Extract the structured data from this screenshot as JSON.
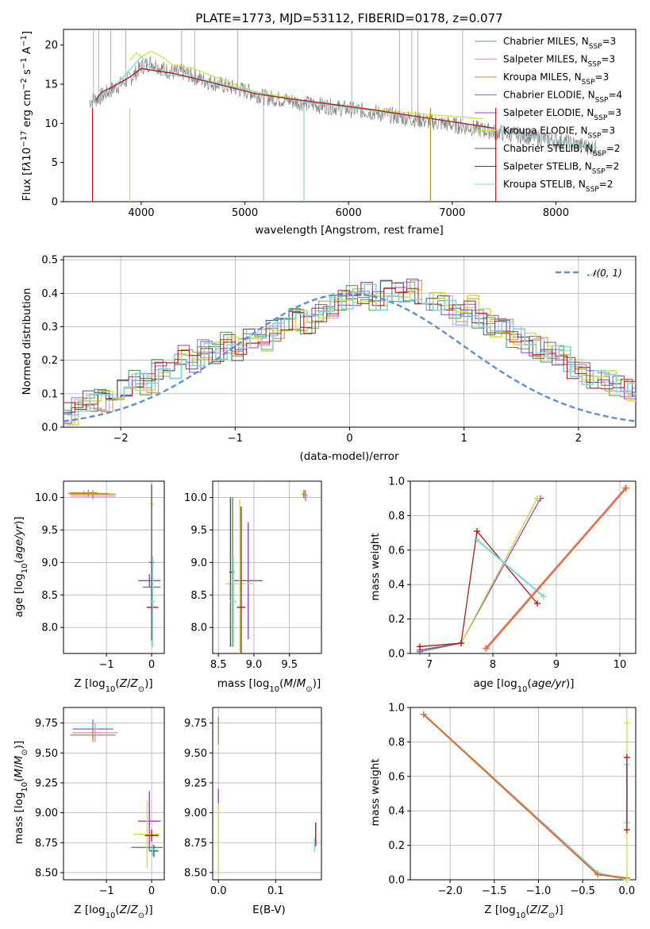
{
  "colors": {
    "Chabrier MILES": "#6b8fd6",
    "Salpeter MILES": "#e890c8",
    "Kroupa MILES": "#c09030",
    "Chabrier ELODIE": "#4a9a4a",
    "Salpeter ELODIE": "#9a40c0",
    "Kroupa ELODIE": "#d4e040",
    "Chabrier STELIB": "#555555",
    "Salpeter STELIB": "#b01818",
    "Kroupa STELIB": "#80d4dc",
    "normal": "#5b8fd6",
    "orange": "#e07030"
  },
  "chart_data": [
    {
      "id": "spectrum",
      "type": "line",
      "title": "PLATE=1773, MJD=53112, FIBERID=0178, z=0.077",
      "xlabel": "wavelength [Angstrom, rest frame]",
      "ylabel": "Flux [f",
      "xlim": [
        3250,
        8770
      ],
      "ylim": [
        0,
        22
      ],
      "xticks": [
        4000,
        5000,
        6000,
        7000,
        8000
      ],
      "yticks": [
        0,
        5,
        10,
        15,
        20
      ],
      "grid": false,
      "legend_position": "top-right",
      "legend": [
        {
          "model": "Chabrier MILES",
          "text": "Chabrier MILES, N",
          "sub": "SSP",
          "n": "=3"
        },
        {
          "model": "Salpeter MILES",
          "text": "Salpeter MILES, N",
          "sub": "SSP",
          "n": "=3"
        },
        {
          "model": "Kroupa MILES",
          "text": "Kroupa MILES, N",
          "sub": "SSP",
          "n": "=3"
        },
        {
          "model": "Chabrier ELODIE",
          "text": "Chabrier ELODIE, N",
          "sub": "SSP",
          "n": "=4"
        },
        {
          "model": "Salpeter ELODIE",
          "text": "Salpeter ELODIE, N",
          "sub": "SSP",
          "n": "=3"
        },
        {
          "model": "Kroupa ELODIE",
          "text": "Kroupa ELODIE, N",
          "sub": "SSP",
          "n": "=3"
        },
        {
          "model": "Chabrier STELIB",
          "text": "Chabrier STELIB, N",
          "sub": "SSP",
          "n": "=2"
        },
        {
          "model": "Salpeter STELIB",
          "text": "Salpeter STELIB, N",
          "sub": "SSP",
          "n": "=2"
        },
        {
          "model": "Kroupa STELIB",
          "text": "Kroupa STELIB, N",
          "sub": "SSP",
          "n": "=2"
        }
      ],
      "data_spectrum": {
        "x": [
          3500,
          3600,
          3700,
          3800,
          3900,
          4000,
          4100,
          4200,
          4300,
          4400,
          4600,
          4800,
          5000,
          5200,
          5400,
          5600,
          5800,
          6000,
          6200,
          6400,
          6600,
          6800,
          7000,
          7200,
          7400,
          7600,
          7800,
          8000,
          8200,
          8400
        ],
        "y": [
          12.8,
          13.3,
          14.2,
          15.0,
          15.8,
          17.2,
          17.8,
          17.0,
          16.5,
          16.5,
          15.5,
          14.8,
          14.2,
          13.3,
          13.0,
          12.5,
          12.2,
          11.8,
          11.5,
          11.0,
          10.6,
          10.2,
          9.8,
          9.4,
          8.9,
          8.6,
          8.2,
          7.8,
          7.3,
          6.8
        ]
      },
      "model_curves": [
        {
          "model": "Kroupa ELODIE",
          "x": [
            3890,
            3950,
            4000,
            4100,
            4200,
            4300,
            4500,
            4700,
            4900,
            5100,
            5300,
            5500,
            5800,
            6100,
            6400,
            6700,
            7000,
            7300
          ],
          "y": [
            18.0,
            19.0,
            18.5,
            19.2,
            18.5,
            17.5,
            17.0,
            16.0,
            15.0,
            14.0,
            13.6,
            13.0,
            12.5,
            12.0,
            11.6,
            11.2,
            10.9,
            10.6
          ]
        },
        {
          "model": "Kroupa STELIB",
          "x": [
            3520,
            3600,
            3800,
            3900,
            4000,
            4100,
            4200,
            4400,
            4600,
            4800,
            5000,
            5300,
            5600,
            6000,
            6400,
            6800,
            7200,
            7600,
            8000,
            8400
          ],
          "y": [
            12.5,
            13.5,
            15.5,
            17.0,
            18.5,
            17.0,
            16.2,
            16.0,
            15.6,
            15.0,
            14.3,
            13.4,
            12.7,
            12.0,
            11.3,
            10.6,
            9.8,
            8.6,
            7.8,
            6.9
          ]
        },
        {
          "model": "Salpeter STELIB",
          "x": [
            3560,
            3620,
            3700,
            3800,
            3900,
            4000,
            4100,
            4300,
            4500,
            4800,
            5100,
            5400,
            5800,
            6200,
            6600,
            7000,
            7400
          ],
          "y": [
            13.0,
            14.0,
            14.5,
            15.2,
            16.0,
            17.0,
            16.8,
            16.4,
            15.8,
            14.8,
            13.8,
            13.2,
            12.5,
            11.8,
            11.0,
            10.2,
            9.4
          ]
        }
      ]
    },
    {
      "id": "residuals",
      "type": "bar",
      "xlabel": "(data-model)/error",
      "ylabel": "Normed distribution",
      "xlim": [
        -2.5,
        2.5
      ],
      "ylim": [
        0,
        0.51
      ],
      "xticks": [
        -2,
        -1,
        0,
        1,
        2
      ],
      "yticks": [
        0.0,
        0.1,
        0.2,
        0.3,
        0.4,
        0.5
      ],
      "grid": true,
      "legend_position": "top-right",
      "legend": [
        {
          "label": "𝒩(0, 1)"
        }
      ],
      "bin_width": 0.1,
      "bin_start": -2.5,
      "base_hist": [
        0.04,
        0.06,
        0.08,
        0.08,
        0.1,
        0.12,
        0.14,
        0.13,
        0.17,
        0.18,
        0.21,
        0.19,
        0.23,
        0.22,
        0.25,
        0.23,
        0.27,
        0.26,
        0.29,
        0.3,
        0.32,
        0.31,
        0.35,
        0.36,
        0.38,
        0.39,
        0.4,
        0.38,
        0.42,
        0.4,
        0.41,
        0.4,
        0.38,
        0.37,
        0.34,
        0.36,
        0.33,
        0.3,
        0.3,
        0.27,
        0.25,
        0.24,
        0.22,
        0.22,
        0.18,
        0.16,
        0.15,
        0.14,
        0.12,
        0.11,
        0.1,
        0.09,
        0.08,
        0.07,
        0.06,
        0.05,
        0.05,
        0.04,
        0.03,
        0.03
      ]
    },
    {
      "id": "age-vs-Z",
      "type": "scatter",
      "xlabel": "Z [log",
      "ylabel": "age  [log",
      "xlim": [
        -1.95,
        0.28
      ],
      "ylim": [
        7.6,
        10.25
      ],
      "xticks": [
        -1,
        0
      ],
      "yticks": [
        8.0,
        8.5,
        9.0,
        9.5,
        10.0
      ],
      "grid": true,
      "points": [
        {
          "model": "Chabrier MILES",
          "x": -1.4,
          "xerr": 0.45,
          "y": 10.06,
          "yerr": 0.06
        },
        {
          "model": "Salpeter MILES",
          "x": -1.3,
          "xerr": 0.5,
          "y": 10.02,
          "yerr": 0.06
        },
        {
          "model": "Kroupa MILES",
          "x": -1.3,
          "xerr": 0.5,
          "y": 10.05,
          "yerr": 0.06
        },
        {
          "model": "Chabrier ELODIE",
          "x": 0.0,
          "xerr": 0.2,
          "y": 8.62,
          "yerr": 0.1
        },
        {
          "model": "Salpeter ELODIE",
          "x": -0.05,
          "xerr": 0.25,
          "y": 8.72,
          "yerr": 0.1
        },
        {
          "model": "Kroupa ELODIE",
          "x": 0.0,
          "xerr": 0.05,
          "y": 9.9,
          "yerr": 0.1
        },
        {
          "model": "Chabrier STELIB",
          "x": 0.0,
          "xerr": 0.05,
          "y": 9.0,
          "yerr": 1.2
        },
        {
          "model": "Salpeter STELIB",
          "x": 0.02,
          "xerr": 0.13,
          "y": 8.31,
          "yerr": 0.05
        },
        {
          "model": "Kroupa STELIB",
          "x": 0.02,
          "xerr": 0.06,
          "y": 8.4,
          "yerr": 0.7
        },
        {
          "model": "Kroupa MILES",
          "x": -1.5,
          "xerr": 0.3,
          "y": 10.07,
          "yerr": 0.03
        }
      ]
    },
    {
      "id": "age-vs-mass",
      "type": "scatter",
      "xlabel": "mass [log",
      "xlim": [
        8.42,
        9.95
      ],
      "ylim": [
        7.6,
        10.25
      ],
      "xticks": [
        8.5,
        9.0,
        9.5
      ],
      "yticks": [
        8.0,
        8.5,
        9.0,
        9.5,
        10.0
      ],
      "grid": true,
      "points": [
        {
          "model": "Chabrier MILES",
          "x": 9.72,
          "xerr": 0.03,
          "y": 10.04,
          "yerr": 0.08
        },
        {
          "model": "Salpeter MILES",
          "x": 9.73,
          "xerr": 0.03,
          "y": 10.02,
          "yerr": 0.08
        },
        {
          "model": "Kroupa MILES",
          "x": 9.7,
          "xerr": 0.03,
          "y": 10.05,
          "yerr": 0.06
        },
        {
          "model": "Chabrier ELODIE",
          "x": 8.7,
          "xerr": 0.03,
          "y": 8.85,
          "yerr": 1.15
        },
        {
          "model": "Salpeter ELODIE",
          "x": 8.92,
          "xerr": 0.2,
          "y": 8.72,
          "yerr": 0.9
        },
        {
          "model": "Kroupa ELODIE",
          "x": 8.8,
          "xerr": 0.2,
          "y": 8.67,
          "yerr": 1.3
        },
        {
          "model": "Chabrier STELIB",
          "x": 8.67,
          "xerr": 0.02,
          "y": 8.85,
          "yerr": 1.15
        },
        {
          "model": "Salpeter STELIB",
          "x": 8.82,
          "xerr": 0.06,
          "y": 8.31,
          "yerr": 1.55
        },
        {
          "model": "Kroupa STELIB",
          "x": 8.71,
          "xerr": 0.05,
          "y": 8.4,
          "yerr": 0.7
        }
      ]
    },
    {
      "id": "weight-vs-age",
      "type": "line",
      "xlabel": "age  [log",
      "ylabel": "mass weight",
      "xlim": [
        6.7,
        10.25
      ],
      "ylim": [
        0,
        1.0
      ],
      "xticks": [
        7,
        8,
        9,
        10
      ],
      "yticks": [
        0.0,
        0.2,
        0.4,
        0.6,
        0.8,
        1.0
      ],
      "grid": true,
      "series": [
        {
          "model": "Chabrier ELODIE",
          "x": [
            6.85,
            7.5,
            8.7
          ],
          "y": [
            0.01,
            0.06,
            0.9
          ]
        },
        {
          "model": "Salpeter ELODIE",
          "x": [
            6.85,
            7.5,
            8.75
          ],
          "y": [
            0.02,
            0.06,
            0.9
          ]
        },
        {
          "model": "Kroupa ELODIE",
          "x": [
            6.85,
            7.5,
            8.7
          ],
          "y": [
            0.04,
            0.06,
            0.9
          ]
        },
        {
          "model": "Salpeter STELIB",
          "x": [
            6.85,
            7.5,
            7.75,
            8.7
          ],
          "y": [
            0.04,
            0.06,
            0.71,
            0.29
          ]
        },
        {
          "model": "Kroupa STELIB",
          "x": [
            7.75,
            8.8
          ],
          "y": [
            0.66,
            0.33
          ]
        },
        {
          "model": "Chabrier MILES",
          "x": [
            7.9,
            10.1
          ],
          "y": [
            0.03,
            0.96
          ]
        },
        {
          "model": "Salpeter MILES",
          "x": [
            7.88,
            10.08
          ],
          "y": [
            0.03,
            0.96
          ]
        },
        {
          "model": "orange",
          "x": [
            7.9,
            10.1
          ],
          "y": [
            0.03,
            0.96
          ]
        }
      ]
    },
    {
      "id": "mass-vs-Z",
      "type": "scatter",
      "xlabel": "Z [log",
      "ylabel": "mass [log",
      "xlim": [
        -1.95,
        0.28
      ],
      "ylim": [
        8.44,
        9.88
      ],
      "xticks": [
        -1,
        0
      ],
      "yticks": [
        8.5,
        8.75,
        9.0,
        9.25,
        9.5,
        9.75
      ],
      "grid": true,
      "points": [
        {
          "model": "Chabrier MILES",
          "x": -1.3,
          "xerr": 0.45,
          "y": 9.7,
          "yerr": 0.08
        },
        {
          "model": "Salpeter MILES",
          "x": -1.25,
          "xerr": 0.5,
          "y": 9.67,
          "yerr": 0.08
        },
        {
          "model": "Kroupa MILES",
          "x": -1.3,
          "xerr": 0.5,
          "y": 9.65,
          "yerr": 0.06
        },
        {
          "model": "Chabrier ELODIE",
          "x": -0.1,
          "xerr": 0.35,
          "y": 8.71,
          "yerr": 0.05
        },
        {
          "model": "Salpeter ELODIE",
          "x": -0.05,
          "xerr": 0.25,
          "y": 8.93,
          "yerr": 0.25
        },
        {
          "model": "Kroupa ELODIE",
          "x": -0.1,
          "xerr": 0.3,
          "y": 8.82,
          "yerr": 0.28
        },
        {
          "model": "Chabrier STELIB",
          "x": 0.05,
          "xerr": 0.1,
          "y": 8.68,
          "yerr": 0.05
        },
        {
          "model": "Salpeter STELIB",
          "x": 0.0,
          "xerr": 0.15,
          "y": 8.81,
          "yerr": 0.05
        },
        {
          "model": "Kroupa STELIB",
          "x": 0.02,
          "xerr": 0.1,
          "y": 8.69,
          "yerr": 0.05
        }
      ]
    },
    {
      "id": "mass-vs-ebv",
      "type": "scatter",
      "xlabel": "E(B-V)",
      "xlim": [
        -0.01,
        0.18
      ],
      "ylim": [
        8.44,
        9.88
      ],
      "xticks": [
        0.0,
        0.1
      ],
      "yticks": [
        8.5,
        8.75,
        9.0,
        9.25,
        9.5,
        9.75
      ],
      "grid": true,
      "points": [
        {
          "model": "Chabrier MILES",
          "x": 0.0,
          "xerr": 0.0,
          "y": 9.7,
          "yerr": 0.1
        },
        {
          "model": "Kroupa MILES",
          "x": 0.0,
          "xerr": 0.0,
          "y": 9.65,
          "yerr": 0.08
        },
        {
          "model": "Salpeter ELODIE",
          "x": 0.0,
          "xerr": 0.0,
          "y": 9.1,
          "yerr": 0.1
        },
        {
          "model": "Kroupa ELODIE",
          "x": 0.0,
          "xerr": 0.0,
          "y": 8.78,
          "yerr": 0.3
        },
        {
          "model": "Salpeter STELIB",
          "x": 0.17,
          "xerr": 0.0,
          "y": 8.82,
          "yerr": 0.1
        },
        {
          "model": "Kroupa STELIB",
          "x": 0.168,
          "xerr": 0.0,
          "y": 8.73,
          "yerr": 0.06
        }
      ]
    },
    {
      "id": "weight-vs-Z",
      "type": "line",
      "xlabel": "Z [log",
      "ylabel": "mass weight",
      "xlim": [
        -2.45,
        0.1
      ],
      "ylim": [
        0,
        1.0
      ],
      "xticks": [
        -2.0,
        -1.5,
        -1.0,
        -0.5,
        0.0
      ],
      "yticks": [
        0.0,
        0.2,
        0.4,
        0.6,
        0.8,
        1.0
      ],
      "grid": true,
      "series": [
        {
          "model": "Chabrier MILES",
          "x": [
            -2.3,
            -0.33,
            0.0
          ],
          "y": [
            0.96,
            0.03,
            0.01
          ]
        },
        {
          "model": "Kroupa STELIB",
          "x": [
            -2.3,
            -0.33,
            0.0
          ],
          "y": [
            0.96,
            0.04,
            0.0
          ]
        },
        {
          "model": "orange",
          "x": [
            -2.3,
            -0.33,
            0.0
          ],
          "y": [
            0.96,
            0.03,
            0.01
          ]
        },
        {
          "model": "Kroupa ELODIE",
          "x": [
            0.0,
            0.0
          ],
          "y": [
            0.0,
            0.91
          ]
        },
        {
          "model": "Kroupa STELIB",
          "x": [
            0.0,
            0.0
          ],
          "y": [
            0.33,
            0.67
          ]
        },
        {
          "model": "Salpeter STELIB",
          "x": [
            0.0,
            0.0
          ],
          "y": [
            0.29,
            0.71
          ]
        }
      ]
    }
  ]
}
